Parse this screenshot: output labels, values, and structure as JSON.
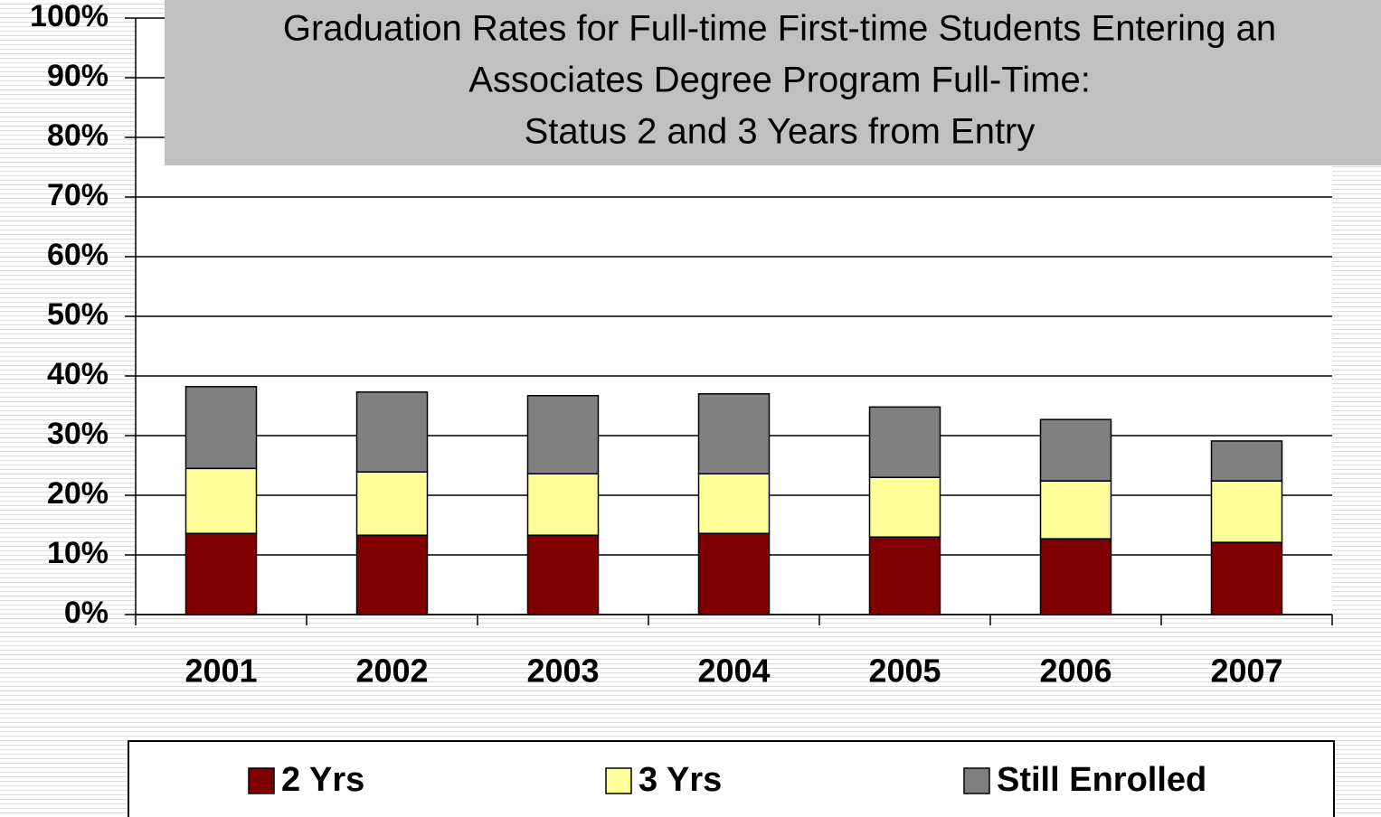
{
  "chart_data": {
    "type": "stacked_bar",
    "title": [
      "Graduation Rates for Full-time First-time Students Entering an",
      "Associates Degree Program Full-Time:",
      "Status 2 and 3 Years from Entry"
    ],
    "categories": [
      "2001",
      "2002",
      "2003",
      "2004",
      "2005",
      "2006",
      "2007"
    ],
    "series": [
      {
        "name": "2 Yrs",
        "color": "#800000",
        "values": [
          13.6,
          13.3,
          13.3,
          13.6,
          13.0,
          12.7,
          12.1
        ]
      },
      {
        "name": "3 Yrs",
        "color": "#ffff99",
        "values": [
          10.9,
          10.6,
          10.3,
          10.0,
          10.0,
          9.7,
          10.3
        ]
      },
      {
        "name": "Still Enrolled",
        "color": "#808080",
        "values": [
          13.7,
          13.4,
          13.1,
          13.4,
          11.8,
          10.3,
          6.7
        ]
      }
    ],
    "ylim": [
      0,
      100
    ],
    "yticks": [
      {
        "value": 0,
        "label": "0%"
      },
      {
        "value": 10,
        "label": "10%"
      },
      {
        "value": 20,
        "label": "20%"
      },
      {
        "value": 30,
        "label": "30%"
      },
      {
        "value": 40,
        "label": "40%"
      },
      {
        "value": 50,
        "label": "50%"
      },
      {
        "value": 60,
        "label": "60%"
      },
      {
        "value": 70,
        "label": "70%"
      },
      {
        "value": 80,
        "label": "80%"
      },
      {
        "value": 90,
        "label": "90%"
      },
      {
        "value": 100,
        "label": "100%"
      }
    ],
    "grid": true,
    "legend": "bottom"
  }
}
